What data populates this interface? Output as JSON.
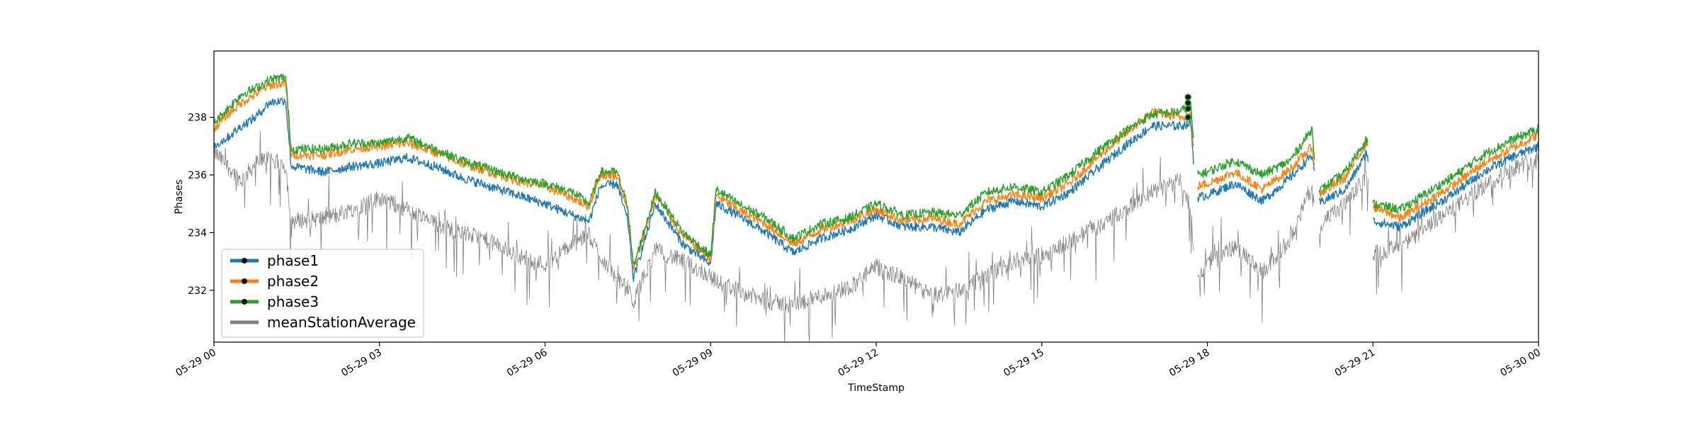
{
  "chart_data": {
    "type": "line",
    "title": "",
    "xlabel": "TimeStamp",
    "ylabel": "Phases",
    "xlim": [
      "2019-05-29 00:00",
      "2019-05-30 00:00"
    ],
    "ylim": [
      230.2,
      240.3
    ],
    "x_tick_labels": [
      "05-29 00",
      "05-29 03",
      "05-29 06",
      "05-29 09",
      "05-29 12",
      "05-29 15",
      "05-29 18",
      "05-29 21",
      "05-30 00"
    ],
    "y_ticks": [
      232,
      234,
      236,
      238
    ],
    "grid": false,
    "legend_position": "lower-left",
    "x_hours": [
      0,
      0.25,
      0.5,
      0.75,
      1.0,
      1.3,
      1.4,
      2.0,
      2.5,
      3.0,
      3.5,
      4.0,
      4.5,
      5.0,
      5.5,
      6.0,
      6.5,
      6.8,
      7.0,
      7.3,
      7.5,
      7.6,
      8.0,
      8.5,
      9.0,
      9.1,
      9.5,
      10.0,
      10.5,
      11.0,
      11.5,
      12.0,
      12.5,
      13.0,
      13.5,
      14.0,
      14.5,
      15.0,
      15.5,
      16.0,
      16.5,
      17.0,
      17.5,
      17.7,
      17.8,
      18.0,
      18.5,
      19.0,
      19.5,
      19.9,
      20.0,
      20.5,
      20.9,
      21.0,
      21.5,
      22.0,
      22.5,
      23.0,
      23.5,
      24.0
    ],
    "series": [
      {
        "name": "phase1",
        "color": "#1f77b4",
        "marker": "circle",
        "values": [
          237.0,
          237.3,
          237.7,
          238.0,
          238.5,
          238.6,
          236.3,
          236.1,
          236.3,
          236.4,
          236.6,
          236.3,
          235.9,
          235.6,
          235.3,
          235.0,
          234.6,
          234.4,
          235.6,
          235.7,
          234.4,
          232.4,
          235.0,
          233.6,
          232.9,
          235.0,
          234.6,
          234.0,
          233.3,
          233.8,
          234.1,
          234.6,
          234.2,
          234.2,
          234.0,
          234.8,
          235.1,
          234.9,
          235.4,
          236.2,
          237.0,
          237.7,
          237.7,
          237.8,
          235.2,
          235.3,
          235.7,
          235.1,
          235.9,
          236.7,
          235.0,
          235.5,
          236.8,
          234.4,
          234.2,
          234.8,
          235.4,
          236.1,
          236.6,
          237.0
        ]
      },
      {
        "name": "phase2",
        "color": "#ff7f0e",
        "marker": "circle",
        "values": [
          237.6,
          238.1,
          238.5,
          238.8,
          239.1,
          239.2,
          236.7,
          236.7,
          236.9,
          237.0,
          237.1,
          236.8,
          236.4,
          236.1,
          235.8,
          235.6,
          235.2,
          234.9,
          236.0,
          236.0,
          234.8,
          232.7,
          235.3,
          233.9,
          233.1,
          235.3,
          234.8,
          234.3,
          233.6,
          234.1,
          234.4,
          234.8,
          234.4,
          234.5,
          234.3,
          235.1,
          235.3,
          235.2,
          235.7,
          236.6,
          237.4,
          238.2,
          238.0,
          238.1,
          235.6,
          235.7,
          236.1,
          235.5,
          236.2,
          237.0,
          235.3,
          235.9,
          237.2,
          234.9,
          234.5,
          235.1,
          235.7,
          236.4,
          236.9,
          237.4
        ]
      },
      {
        "name": "phase3",
        "color": "#2ca02c",
        "marker": "circle",
        "values": [
          237.8,
          238.3,
          238.8,
          239.0,
          239.3,
          239.4,
          236.9,
          236.9,
          237.1,
          237.1,
          237.3,
          236.9,
          236.5,
          236.2,
          235.9,
          235.7,
          235.4,
          235.0,
          236.1,
          236.1,
          234.9,
          232.8,
          235.4,
          234.0,
          233.2,
          235.5,
          235.0,
          234.5,
          233.8,
          234.3,
          234.5,
          235.0,
          234.6,
          234.7,
          234.6,
          235.4,
          235.6,
          235.4,
          236.0,
          236.8,
          237.5,
          238.1,
          238.2,
          238.4,
          236.0,
          236.1,
          236.5,
          236.0,
          236.5,
          237.6,
          235.4,
          236.1,
          237.3,
          235.0,
          234.8,
          235.4,
          236.0,
          236.7,
          237.2,
          237.6
        ]
      },
      {
        "name": "meanStationAverage",
        "color": "#808080",
        "marker": "none",
        "values": [
          236.8,
          236.3,
          235.8,
          236.4,
          236.6,
          236.3,
          234.4,
          234.5,
          234.8,
          235.2,
          234.8,
          234.3,
          234.0,
          233.7,
          233.2,
          232.9,
          233.6,
          233.9,
          233.2,
          232.4,
          232.0,
          231.6,
          233.4,
          233.0,
          232.5,
          232.3,
          232.0,
          231.6,
          231.5,
          231.8,
          232.1,
          232.8,
          232.4,
          231.8,
          232.0,
          232.5,
          233.0,
          233.2,
          233.7,
          234.2,
          234.8,
          235.4,
          235.8,
          234.9,
          232.2,
          233.0,
          233.5,
          232.6,
          233.8,
          235.6,
          234.2,
          235.0,
          236.0,
          233.3,
          233.5,
          234.2,
          234.9,
          235.6,
          236.2,
          236.6
        ]
      }
    ],
    "annotations": [
      {
        "type": "markers",
        "hour": 17.65,
        "series": "phase3",
        "values": [
          238.7,
          238.5,
          238.3,
          238.0
        ]
      }
    ]
  }
}
